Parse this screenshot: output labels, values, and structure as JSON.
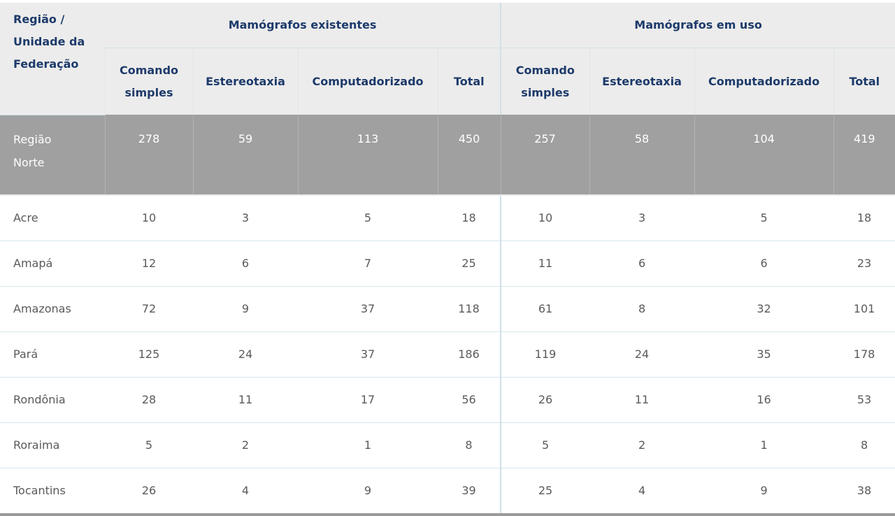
{
  "table": {
    "corner": "Região / Unidade da Federação",
    "groups": [
      "Mamógrafos existentes",
      "Mamógrafos em uso"
    ],
    "columns": [
      "Comando simples",
      "Estereotaxia",
      "Computadorizado",
      "Total",
      "Comando simples",
      "Estereotaxia",
      "Computadorizado",
      "Total"
    ],
    "region": {
      "label": "Região Norte",
      "values": [
        278,
        59,
        113,
        450,
        257,
        58,
        104,
        419
      ]
    },
    "rows": [
      {
        "label": "Acre",
        "values": [
          10,
          3,
          5,
          18,
          10,
          3,
          5,
          18
        ]
      },
      {
        "label": "Amapá",
        "values": [
          12,
          6,
          7,
          25,
          11,
          6,
          6,
          23
        ]
      },
      {
        "label": "Amazonas",
        "values": [
          72,
          9,
          37,
          118,
          61,
          8,
          32,
          101
        ]
      },
      {
        "label": "Pará",
        "values": [
          125,
          24,
          37,
          186,
          119,
          24,
          35,
          178
        ]
      },
      {
        "label": "Rondônia",
        "values": [
          28,
          11,
          17,
          56,
          26,
          11,
          16,
          53
        ]
      },
      {
        "label": "Roraima",
        "values": [
          5,
          2,
          1,
          8,
          5,
          2,
          1,
          8
        ]
      },
      {
        "label": "Tocantins",
        "values": [
          26,
          4,
          9,
          39,
          25,
          4,
          9,
          38
        ]
      }
    ]
  }
}
